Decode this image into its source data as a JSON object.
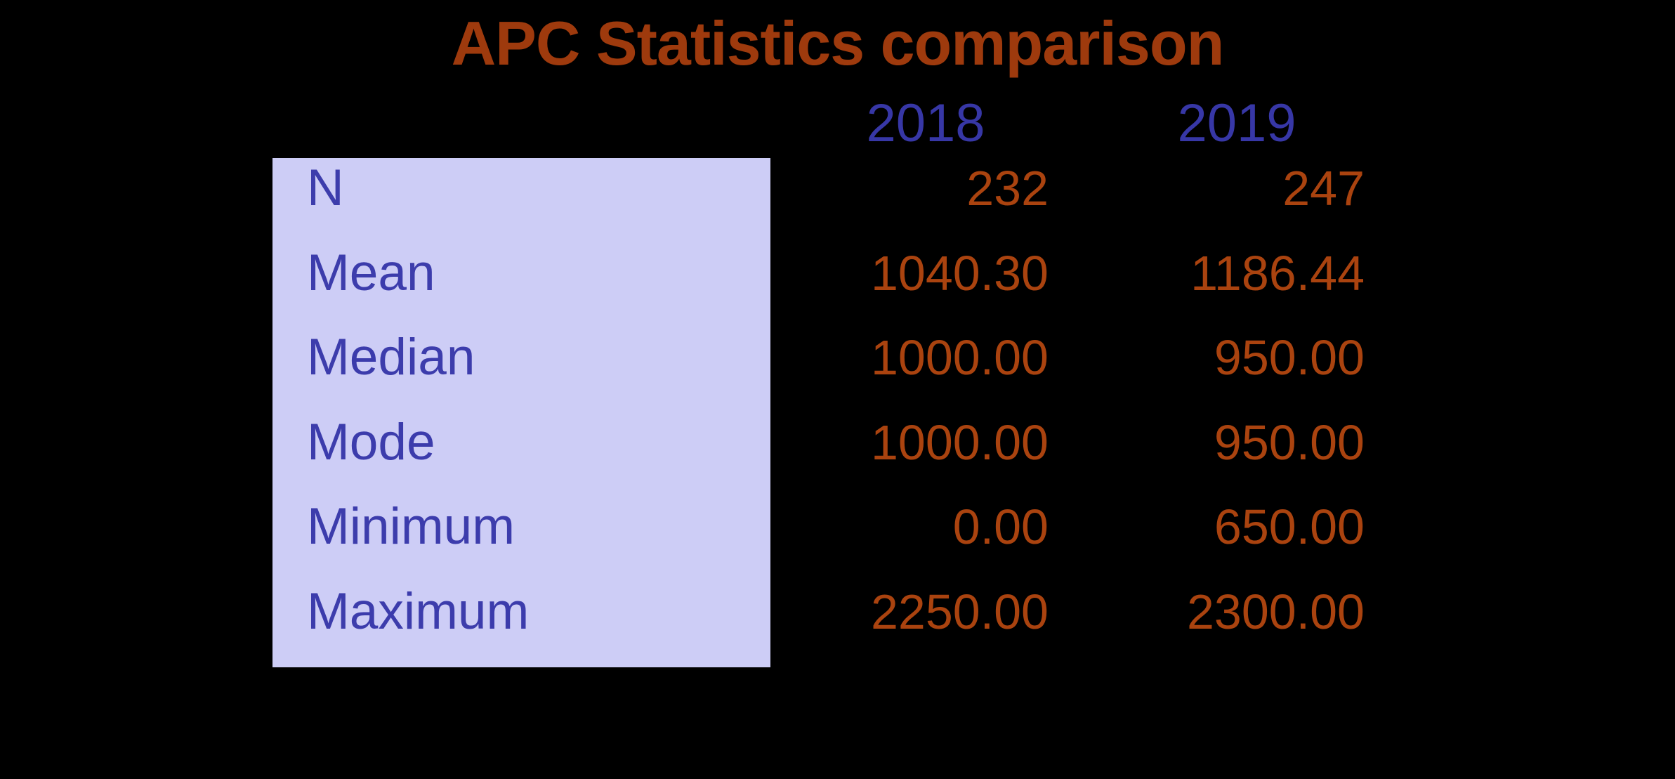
{
  "title": "APC Statistics comparison",
  "chart_data": {
    "type": "table",
    "title": "APC Statistics comparison",
    "columns": [
      "2018",
      "2019"
    ],
    "rows": [
      {
        "label": "N",
        "values": [
          "232",
          "247"
        ]
      },
      {
        "label": "Mean",
        "values": [
          "1040.30",
          "1186.44"
        ]
      },
      {
        "label": "Median",
        "values": [
          "1000.00",
          "950.00"
        ]
      },
      {
        "label": "Mode",
        "values": [
          "1000.00",
          "950.00"
        ]
      },
      {
        "label": "Minimum",
        "values": [
          "0.00",
          "650.00"
        ]
      },
      {
        "label": "Maximum",
        "values": [
          "2250.00",
          "2300.00"
        ]
      }
    ],
    "layout": {
      "grid": false,
      "legend": "none",
      "value_alignment": "right",
      "row_label_panel": "lavender box on left"
    },
    "colors": {
      "background": "#000000",
      "title_text": "#9E3A0D",
      "year_header_text": "#3737A6",
      "row_label_text": "#3C3CAC",
      "value_text": "#AA430F",
      "label_box_fill": "#CDCDF6"
    }
  }
}
